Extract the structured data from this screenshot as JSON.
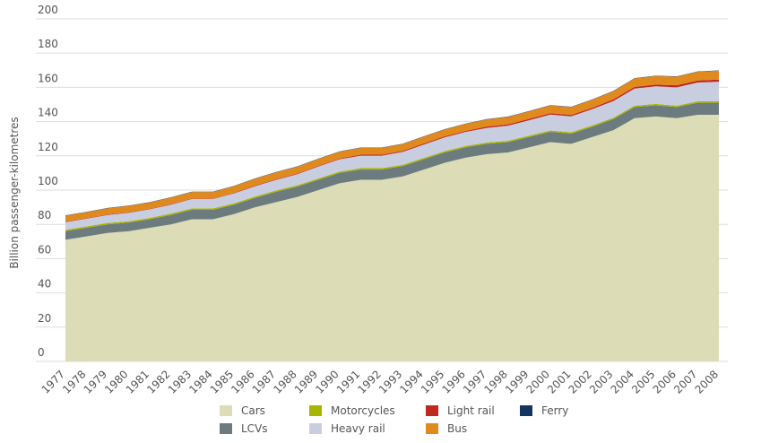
{
  "chart_data": {
    "type": "stacked_area",
    "y_label": "Billion passenger-kilometres",
    "categories": [
      "1977",
      "1978",
      "1979",
      "1980",
      "1981",
      "1982",
      "1983",
      "1984",
      "1985",
      "1986",
      "1987",
      "1988",
      "1989",
      "1990",
      "1991",
      "1992",
      "1993",
      "1994",
      "1995",
      "1996",
      "1997",
      "1998",
      "1999",
      "2000",
      "2001",
      "2002",
      "2003",
      "2004",
      "2005",
      "2006",
      "2007",
      "2008"
    ],
    "ylim": [
      0,
      200
    ],
    "yticks": [
      0,
      20,
      40,
      60,
      80,
      100,
      120,
      140,
      160,
      180,
      200
    ],
    "grid": true,
    "legend": "bottom",
    "series": [
      {
        "name": "Cars",
        "color": "#dcdcb6",
        "values": [
          71,
          73,
          75,
          76,
          78,
          80,
          83,
          83,
          86,
          90,
          93,
          96,
          100,
          104,
          106,
          106,
          108,
          112,
          116,
          119,
          121,
          122,
          125,
          128,
          127,
          131,
          135,
          142,
          143,
          142,
          144,
          144
        ]
      },
      {
        "name": "LCVs",
        "color": "#6b7b7e",
        "values": [
          5,
          5,
          5,
          5,
          5,
          5.5,
          5.5,
          5.5,
          5.5,
          5.5,
          6,
          6,
          6,
          6,
          6,
          6,
          6,
          6,
          6,
          6,
          6,
          6,
          6,
          6,
          6,
          6,
          6.5,
          6.5,
          6.5,
          6.5,
          7,
          7
        ]
      },
      {
        "name": "Motorcycles",
        "color": "#a8b400",
        "values": [
          0.8,
          0.8,
          0.8,
          0.8,
          0.8,
          0.8,
          0.8,
          0.8,
          0.8,
          0.8,
          0.8,
          0.8,
          0.8,
          0.8,
          0.8,
          0.8,
          0.8,
          0.8,
          0.8,
          0.8,
          0.8,
          0.8,
          0.8,
          0.8,
          0.8,
          0.8,
          0.8,
          0.8,
          0.8,
          0.8,
          0.8,
          0.8
        ]
      },
      {
        "name": "Heavy rail",
        "color": "#c9cde0",
        "values": [
          4.5,
          4.5,
          4.7,
          5,
          5,
          5.2,
          5.5,
          5.5,
          5.8,
          6,
          6.2,
          6.5,
          7,
          7.2,
          7.3,
          7.3,
          7.5,
          7.8,
          8,
          8.2,
          8.5,
          8.8,
          9,
          9.3,
          9.3,
          9.5,
          9.7,
          10,
          10.3,
          10.7,
          11,
          11.5
        ]
      },
      {
        "name": "Light rail",
        "color": "#c0281e",
        "values": [
          0.3,
          0.3,
          0.3,
          0.3,
          0.3,
          0.3,
          0.3,
          0.3,
          0.3,
          0.4,
          0.4,
          0.4,
          0.4,
          0.4,
          0.6,
          0.6,
          0.6,
          0.6,
          0.6,
          0.6,
          0.8,
          0.8,
          0.8,
          0.8,
          0.8,
          0.8,
          1,
          1,
          1,
          1.2,
          1.2,
          1.2
        ]
      },
      {
        "name": "Bus",
        "color": "#e08a1e",
        "values": [
          3.5,
          3.5,
          3.6,
          3.7,
          3.7,
          3.8,
          3.8,
          3.8,
          3.9,
          4,
          4,
          4,
          4,
          4,
          4,
          4,
          4,
          4,
          4,
          4.1,
          4.2,
          4.3,
          4.4,
          4.5,
          4.6,
          4.7,
          4.8,
          4.9,
          5,
          5,
          5.1,
          5.2
        ]
      },
      {
        "name": "Ferry",
        "color": "#14355f",
        "values": [
          0.2,
          0.2,
          0.2,
          0.2,
          0.2,
          0.2,
          0.2,
          0.2,
          0.2,
          0.2,
          0.2,
          0.2,
          0.2,
          0.2,
          0.2,
          0.2,
          0.2,
          0.2,
          0.2,
          0.2,
          0.2,
          0.2,
          0.2,
          0.2,
          0.2,
          0.2,
          0.2,
          0.2,
          0.2,
          0.2,
          0.2,
          0.2
        ]
      }
    ]
  }
}
